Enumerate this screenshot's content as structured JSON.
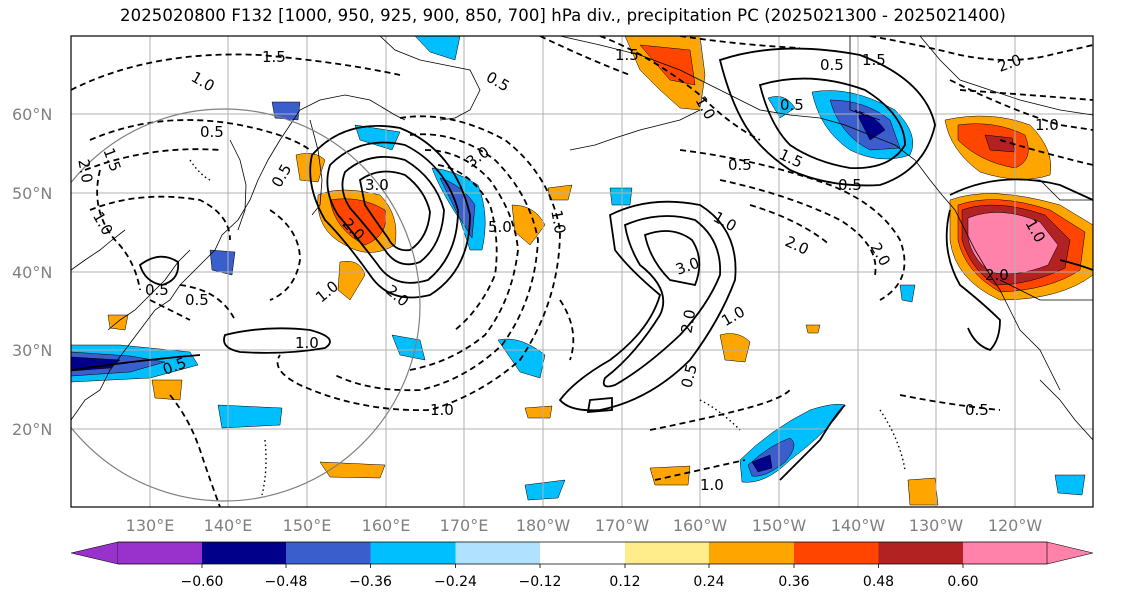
{
  "title": "2025020800 F132 [1000, 950, 925, 900, 850, 700] hPa div., precipitation PC (2025021300 - 2025021400)",
  "lat_labels": [
    "60°N",
    "50°N",
    "40°N",
    "30°N",
    "20°N"
  ],
  "lon_labels": [
    "130°E",
    "140°E",
    "150°E",
    "160°E",
    "170°E",
    "180°W",
    "170°W",
    "160°W",
    "150°W",
    "140°W",
    "130°W",
    "120°W"
  ],
  "colorbar": {
    "colors": [
      "#9932cc",
      "#00008b",
      "#3a5fcd",
      "#00bfff",
      "#b0e2ff",
      "#ffffff",
      "#ffec8b",
      "#ffa500",
      "#ff4500",
      "#b22222",
      "#ff82ab"
    ],
    "tick_labels": [
      "−0.60",
      "−0.48",
      "−0.36",
      "−0.24",
      "−0.12",
      "0.12",
      "0.24",
      "0.36",
      "0.48",
      "0.60"
    ]
  },
  "contour_labels": {
    "l1": "1.5",
    "l2": "1.0",
    "l3": "0.5",
    "l4": "2.0",
    "l5": "1.5",
    "l6": "0.5",
    "l7": "2.0",
    "l8": "3.0",
    "l9": "3.0",
    "l10": "1.0",
    "l11": "2.0",
    "l12": "5.0",
    "l13": "0.5",
    "l14": "0.5",
    "l15": "1.0",
    "l16": "0.5",
    "l17": "1.0",
    "l18": "0.5",
    "l19": "3.0",
    "l20": "2.0",
    "l21": "1.0",
    "l22": "0.5",
    "l23": "1.0",
    "l24": "1.5",
    "l25": "0.5",
    "l26": "1.5",
    "l27": "0.5",
    "l28": "1.5",
    "l29": "0.5",
    "l30": "1.0",
    "l31": "2.0",
    "l32": "1.0",
    "l33": "1.0",
    "l34": "0.5",
    "l35": "1.0",
    "l36": "0.5",
    "l37": "2.0",
    "l38": "2.0",
    "l39": "1.0",
    "l40": "2.0",
    "l41": "1.0"
  }
}
